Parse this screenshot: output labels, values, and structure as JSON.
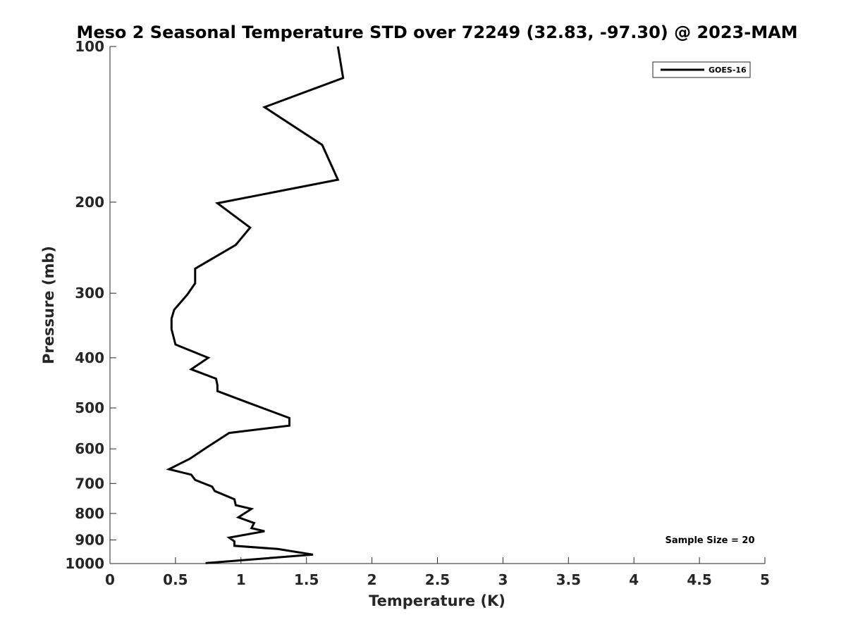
{
  "chart_data": {
    "type": "line",
    "title": "Meso 2 Seasonal Temperature STD over 72249 (32.83, -97.30) @ 2023-MAM",
    "xlabel": "Temperature (K)",
    "ylabel": "Pressure (mb)",
    "xlim": [
      0,
      5
    ],
    "ylim": [
      100,
      1000
    ],
    "y_scale": "log",
    "y_reversed": true,
    "grid": false,
    "legend_position": "top-right",
    "x_ticks": [
      0,
      0.5,
      1,
      1.5,
      2,
      2.5,
      3,
      3.5,
      4,
      4.5,
      5
    ],
    "x_tick_labels": [
      "0",
      "0.5",
      "1",
      "1.5",
      "2",
      "2.5",
      "3",
      "3.5",
      "4",
      "4.5",
      "5"
    ],
    "y_ticks": [
      100,
      200,
      300,
      400,
      500,
      600,
      700,
      800,
      900,
      1000
    ],
    "y_tick_labels": [
      "100",
      "200",
      "300",
      "400",
      "500",
      "600",
      "700",
      "800",
      "900",
      "1000"
    ],
    "series": [
      {
        "name": "GOES-16",
        "color": "#000000",
        "x": [
          1.74,
          1.78,
          1.18,
          1.62,
          1.74,
          0.82,
          1.07,
          0.96,
          0.65,
          0.65,
          0.59,
          0.49,
          0.47,
          0.47,
          0.5,
          0.75,
          0.62,
          0.81,
          0.82,
          0.82,
          1.05,
          1.37,
          1.37,
          0.91,
          0.74,
          0.61,
          0.45,
          0.62,
          0.65,
          0.78,
          0.8,
          0.95,
          0.96,
          1.08,
          0.98,
          1.1,
          1.08,
          1.18,
          0.91,
          0.95,
          0.95,
          1.28,
          1.55,
          0.73
        ],
        "y": [
          100,
          115,
          131,
          155,
          181,
          201,
          224,
          242,
          269,
          287,
          302,
          323,
          336,
          352,
          377,
          400,
          421,
          439,
          452,
          464,
          488,
          523,
          541,
          559,
          596,
          627,
          657,
          673,
          689,
          710,
          724,
          751,
          771,
          784,
          814,
          835,
          854,
          866,
          891,
          906,
          924,
          937,
          961,
          998
        ]
      }
    ],
    "annotations": [
      "Sample Size = 20"
    ]
  }
}
